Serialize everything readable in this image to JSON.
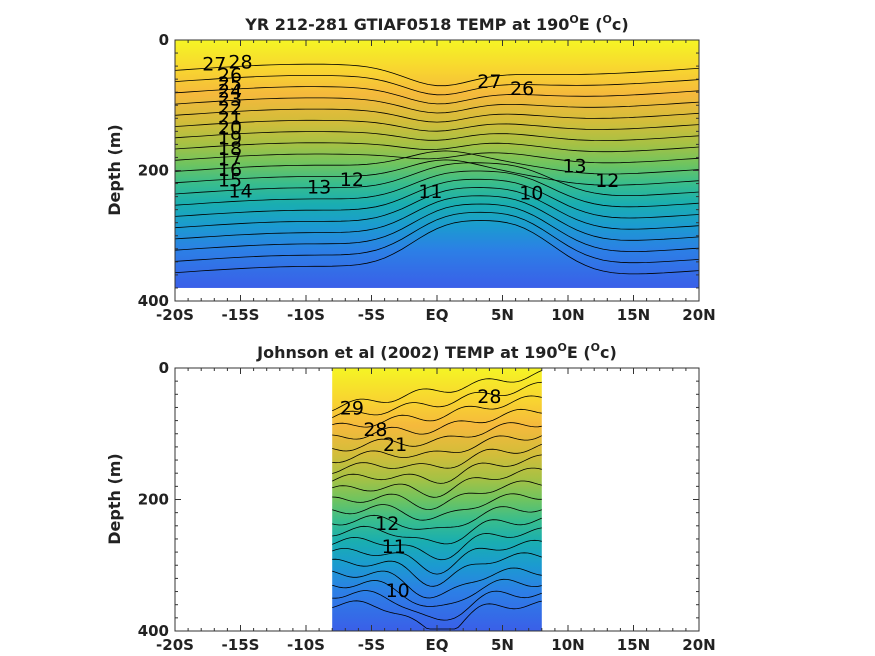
{
  "chart_data": [
    {
      "type": "contour",
      "title": "YR 212-281 GTIAF0518 TEMP at 190",
      "title_sup": "O",
      "title_tail": "E (",
      "title_unit_sup": "O",
      "title_unit_tail": "c)",
      "ylabel": "Depth (m)",
      "xlabel": "",
      "xlim": [
        -20,
        20
      ],
      "ylim": [
        400,
        0
      ],
      "y_reversed": true,
      "x_ticks": [
        -20,
        -15,
        -10,
        -5,
        0,
        5,
        10,
        15,
        20
      ],
      "x_tick_labels": [
        "-20S",
        "-15S",
        "-10S",
        "-5S",
        "EQ",
        "5N",
        "10N",
        "15N",
        "20N"
      ],
      "y_ticks": [
        0,
        200,
        400
      ],
      "y_tick_labels": [
        "0",
        "200",
        "400"
      ],
      "data_extent": {
        "x": [
          -20,
          20
        ],
        "depth": [
          0,
          380
        ]
      },
      "colormap": "parula",
      "color_range_degC": [
        10,
        29
      ],
      "contour_levels_degC": [
        10,
        11,
        12,
        13,
        14,
        15,
        16,
        17,
        18,
        19,
        20,
        21,
        22,
        23,
        24,
        25,
        26,
        27,
        28
      ],
      "contour_labels": [
        {
          "text": "28",
          "x": -15,
          "depth": 35
        },
        {
          "text": "27",
          "x": -17,
          "depth": 38
        },
        {
          "text": "26",
          "x": -15.8,
          "depth": 55
        },
        {
          "text": "25",
          "x": -15.8,
          "depth": 68
        },
        {
          "text": "24",
          "x": -15.8,
          "depth": 80
        },
        {
          "text": "23",
          "x": -15.8,
          "depth": 92
        },
        {
          "text": "22",
          "x": -15.8,
          "depth": 106
        },
        {
          "text": "21",
          "x": -15.8,
          "depth": 121
        },
        {
          "text": "20",
          "x": -15.8,
          "depth": 136
        },
        {
          "text": "19",
          "x": -15.8,
          "depth": 152
        },
        {
          "text": "18",
          "x": -15.8,
          "depth": 168
        },
        {
          "text": "17",
          "x": -15.8,
          "depth": 184
        },
        {
          "text": "16",
          "x": -15.8,
          "depth": 200
        },
        {
          "text": "15",
          "x": -15.8,
          "depth": 216
        },
        {
          "text": "14",
          "x": -15.0,
          "depth": 233
        },
        {
          "text": "13",
          "x": -9.0,
          "depth": 227
        },
        {
          "text": "12",
          "x": -6.5,
          "depth": 215
        },
        {
          "text": "11",
          "x": -0.5,
          "depth": 234
        },
        {
          "text": "10",
          "x": 7.2,
          "depth": 236
        },
        {
          "text": "27",
          "x": 4.0,
          "depth": 65
        },
        {
          "text": "26",
          "x": 6.5,
          "depth": 76
        },
        {
          "text": "13",
          "x": 10.5,
          "depth": 195
        },
        {
          "text": "12",
          "x": 13.0,
          "depth": 217
        }
      ],
      "clustered_labels_note": ""
    },
    {
      "type": "contour",
      "title": "Johnson et al (2002) TEMP at 190",
      "title_sup": "O",
      "title_tail": "E (",
      "title_unit_sup": "O",
      "title_unit_tail": "c)",
      "ylabel": "Depth (m)",
      "xlabel": "",
      "xlim": [
        -20,
        20
      ],
      "ylim": [
        400,
        0
      ],
      "y_reversed": true,
      "x_ticks": [
        -20,
        -15,
        -10,
        -5,
        0,
        5,
        10,
        15,
        20
      ],
      "x_tick_labels": [
        "-20S",
        "-15S",
        "-10S",
        "-5S",
        "EQ",
        "5N",
        "10N",
        "15N",
        "20N"
      ],
      "y_ticks": [
        0,
        200,
        400
      ],
      "y_tick_labels": [
        "0",
        "200",
        "400"
      ],
      "data_extent": {
        "x": [
          -8,
          8
        ],
        "depth": [
          0,
          400
        ]
      },
      "colormap": "parula",
      "color_range_degC": [
        10,
        29
      ],
      "contour_levels_degC": [
        10,
        11,
        12,
        13,
        14,
        15,
        16,
        17,
        18,
        19,
        20,
        21,
        22,
        23,
        24,
        25,
        26,
        27,
        28,
        29
      ],
      "contour_labels": [
        {
          "text": "29",
          "x": -6.5,
          "depth": 62
        },
        {
          "text": "28",
          "x": -4.7,
          "depth": 95
        },
        {
          "text": "28",
          "x": 4.0,
          "depth": 45
        },
        {
          "text": "21",
          "x": -3.2,
          "depth": 118
        },
        {
          "text": "12",
          "x": -3.8,
          "depth": 238
        },
        {
          "text": "11",
          "x": -3.3,
          "depth": 273
        },
        {
          "text": "10",
          "x": -3.0,
          "depth": 340
        }
      ]
    }
  ]
}
